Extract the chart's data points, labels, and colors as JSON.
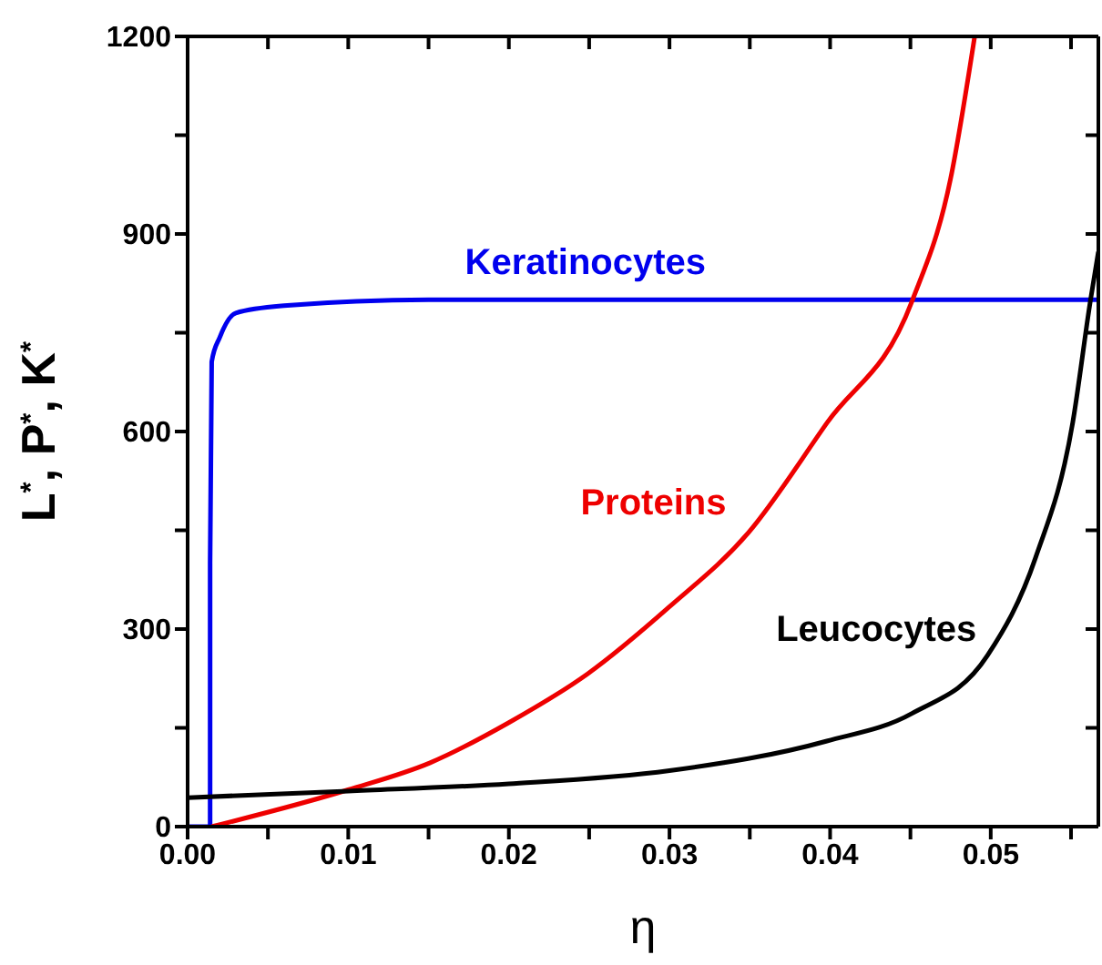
{
  "chart_data": {
    "type": "line",
    "xlabel": "η",
    "ylabel": "L$^{*}$, P$^{*}$, K$^{*}$",
    "xlim": [
      0,
      0.0567
    ],
    "xticks": [
      {
        "value": 0,
        "label": "0.00"
      },
      {
        "value": 0.005,
        "label": null
      },
      {
        "value": 0.01,
        "label": "0.01"
      },
      {
        "value": 0.015,
        "label": null
      },
      {
        "value": 0.02,
        "label": "0.02"
      },
      {
        "value": 0.025,
        "label": null
      },
      {
        "value": 0.03,
        "label": "0.03"
      },
      {
        "value": 0.035,
        "label": null
      },
      {
        "value": 0.04,
        "label": "0.04"
      },
      {
        "value": 0.045,
        "label": null
      },
      {
        "value": 0.05,
        "label": "0.05"
      },
      {
        "value": 0.055,
        "label": null
      }
    ],
    "ylim": [
      0,
      1200
    ],
    "yticks": [
      0,
      {
        "value": 150,
        "label": null
      },
      300,
      {
        "value": 450,
        "label": null
      },
      600,
      {
        "value": 750,
        "label": null
      },
      900,
      {
        "value": 1050,
        "label": null
      },
      1200
    ],
    "marker": "none",
    "line_style": "solid",
    "series": [
      {
        "name": "Keratinocytes",
        "color": "#0000ee",
        "x": [
          0,
          0.0014,
          0.0014,
          0.0015,
          0.002,
          0.003,
          0.006,
          0.015,
          0.025,
          0.0567
        ],
        "values": [
          0,
          0,
          400,
          706,
          743,
          780,
          791,
          800,
          800,
          800
        ]
      },
      {
        "name": "Proteins",
        "color": "#ee0000",
        "x": [
          0.0015,
          0.01,
          0.0151,
          0.02,
          0.0249,
          0.03,
          0.0349,
          0.0398,
          0.0451,
          0.0475,
          0.049
        ],
        "values": [
          0,
          56,
          97,
          158,
          232,
          334,
          446,
          613,
          798,
          984,
          1200
        ]
      },
      {
        "name": "Leucocytes",
        "color": "#000000",
        "x": [
          0,
          0.01,
          0.02,
          0.03,
          0.0398,
          0.0451,
          0.0498,
          0.0528,
          0.0551,
          0.0562,
          0.0567
        ],
        "values": [
          44,
          54,
          65,
          85,
          130,
          172,
          260,
          409,
          613,
          798,
          873
        ]
      }
    ]
  }
}
